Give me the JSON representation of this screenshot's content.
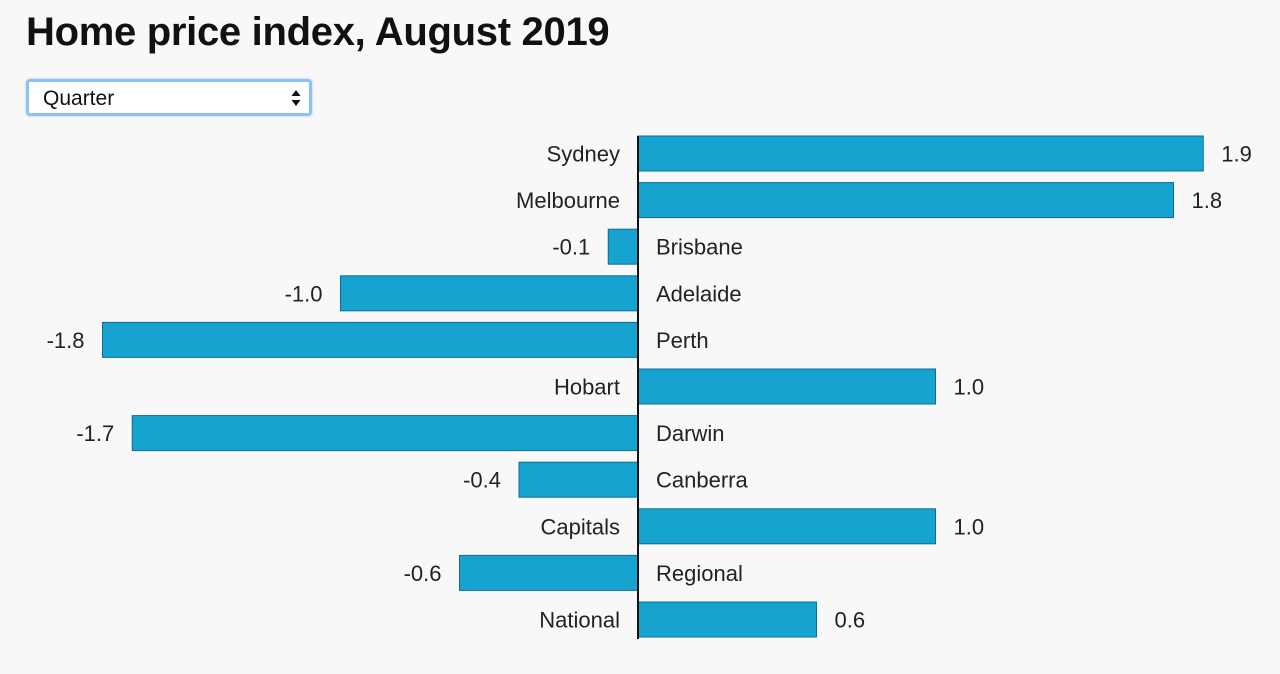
{
  "title": "Home price index, August 2019",
  "period_select": {
    "selected": "Quarter"
  },
  "colors": {
    "bar_fill": "#17a3d0",
    "bar_stroke": "#0b6f93",
    "axis": "#111111",
    "background": "#f8f8f8"
  },
  "chart_data": {
    "type": "bar",
    "orientation": "horizontal",
    "title": "Home price index, August 2019",
    "categories": [
      "Sydney",
      "Melbourne",
      "Brisbane",
      "Adelaide",
      "Perth",
      "Hobart",
      "Darwin",
      "Canberra",
      "Capitals",
      "Regional",
      "National"
    ],
    "values": [
      1.9,
      1.8,
      -0.1,
      -1.0,
      -1.8,
      1.0,
      -1.7,
      -0.4,
      1.0,
      -0.6,
      0.6
    ],
    "value_labels": [
      "1.9",
      "1.8",
      "-0.1",
      "-1.0",
      "-1.8",
      "1.0",
      "-1.7",
      "-0.4",
      "1.0",
      "-0.6",
      "0.6"
    ],
    "xlim": [
      -1.8,
      1.9
    ],
    "xlabel": "",
    "ylabel": "",
    "grid": false,
    "legend": "none"
  }
}
